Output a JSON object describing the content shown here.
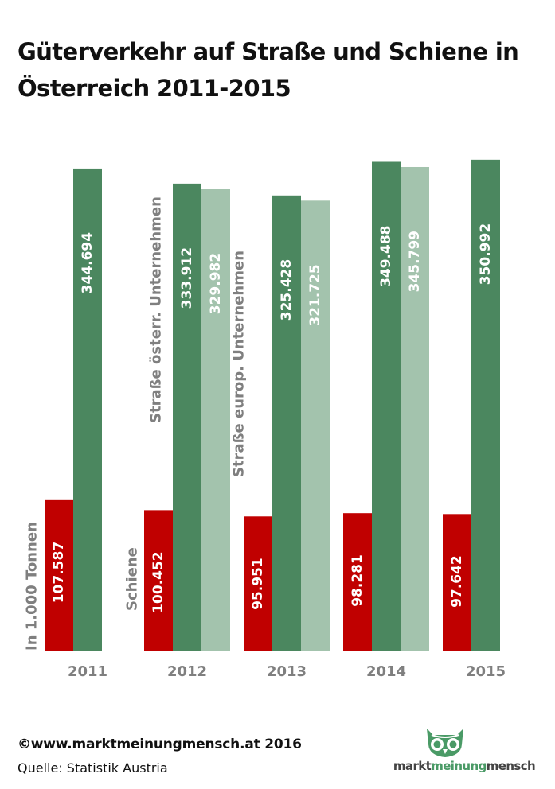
{
  "title": "Güterverkehr auf Straße und Schiene in Österreich 2011-2015",
  "colors": {
    "schiene": "#c00000",
    "strasse_oesterr": "#4b875f",
    "strasse_europ": "#a3c3ad"
  },
  "series_labels": {
    "schiene": "Schiene",
    "strasse_oesterr": "Straße österr. Unternehmen",
    "strasse_europ": "Straße europ. Unternehmen"
  },
  "unit_label": "In 1.000 Tonnen",
  "footer": {
    "copyright": "©www.marktmeinungmensch.at 2016",
    "source": "Quelle:  Statistik Austria"
  },
  "logo": {
    "word1": "markt",
    "word2": "meinung",
    "word3": "mensch",
    "icon": "owl-icon"
  },
  "chart_data": {
    "type": "bar",
    "title": "Güterverkehr auf Straße und Schiene in Österreich 2011-2015",
    "categories": [
      "2011",
      "2012",
      "2013",
      "2014",
      "2015"
    ],
    "series": [
      {
        "name": "Schiene",
        "values": [
          107.587,
          100.452,
          95.951,
          98.281,
          97.642
        ],
        "labels": [
          "107.587",
          "100.452",
          "95.951",
          "98.281",
          "97.642"
        ]
      },
      {
        "name": "Straße österr. Unternehmen",
        "values": [
          344.694,
          333.912,
          325.428,
          349.488,
          350.992
        ],
        "labels": [
          "344.694",
          "333.912",
          "325.428",
          "349.488",
          "350.992"
        ]
      },
      {
        "name": "Straße europ. Unternehmen",
        "values": [
          null,
          329.982,
          321.725,
          345.799,
          null
        ],
        "labels": [
          "",
          "329.982",
          "321.725",
          "345.799",
          ""
        ]
      }
    ],
    "ylabel": "In 1.000 Tonnen",
    "grid": false,
    "legend": "labels inside bars"
  }
}
